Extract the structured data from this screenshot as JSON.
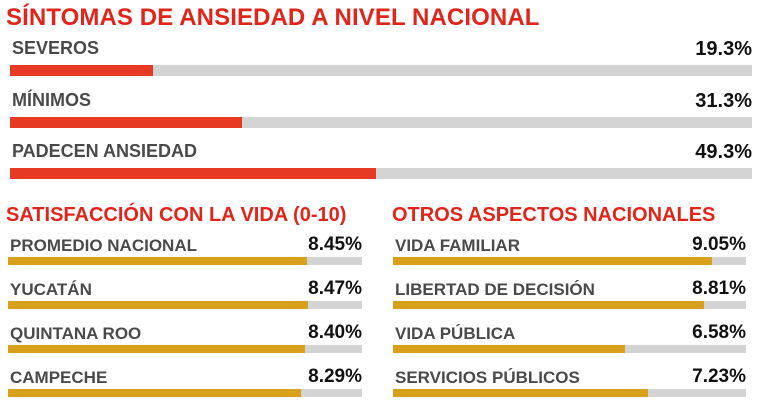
{
  "colors": {
    "title": "#e1251b",
    "anxiety_bar": "#e63a24",
    "satisfaction_bar": "#d9a11b",
    "track": "#d4d4d4",
    "label": "#4a4a4a",
    "value": "#111111"
  },
  "chart_data": [
    {
      "type": "bar",
      "orientation": "horizontal",
      "title": "SÍNTOMAS DE ANSIEDAD A NIVEL NACIONAL",
      "categories": [
        "SEVEROS",
        "MÍNIMOS",
        "PADECEN ANSIEDAD"
      ],
      "values": [
        19.3,
        31.3,
        49.3
      ],
      "value_labels": [
        "19.3%",
        "31.3%",
        "49.3%"
      ],
      "xlim": [
        0,
        100
      ]
    },
    {
      "type": "bar",
      "orientation": "horizontal",
      "title": "SATISFACCIÓN CON LA VIDA (0-10)",
      "categories": [
        "PROMEDIO NACIONAL",
        "YUCATÁN",
        "QUINTANA ROO",
        "CAMPECHE"
      ],
      "values": [
        8.45,
        8.47,
        8.4,
        8.29
      ],
      "value_labels": [
        "8.45%",
        "8.47%",
        "8.40%",
        "8.29%"
      ],
      "xlim": [
        0,
        10
      ]
    },
    {
      "type": "bar",
      "orientation": "horizontal",
      "title": "OTROS ASPECTOS NACIONALES",
      "categories": [
        "VIDA FAMILIAR",
        "LIBERTAD DE DECISIÓN",
        "VIDA PÚBLICA",
        "SERVICIOS PÚBLICOS"
      ],
      "values": [
        9.05,
        8.81,
        6.58,
        7.23
      ],
      "value_labels": [
        "9.05%",
        "8.81%",
        "6.58%",
        "7.23%"
      ],
      "xlim": [
        0,
        10
      ]
    }
  ]
}
